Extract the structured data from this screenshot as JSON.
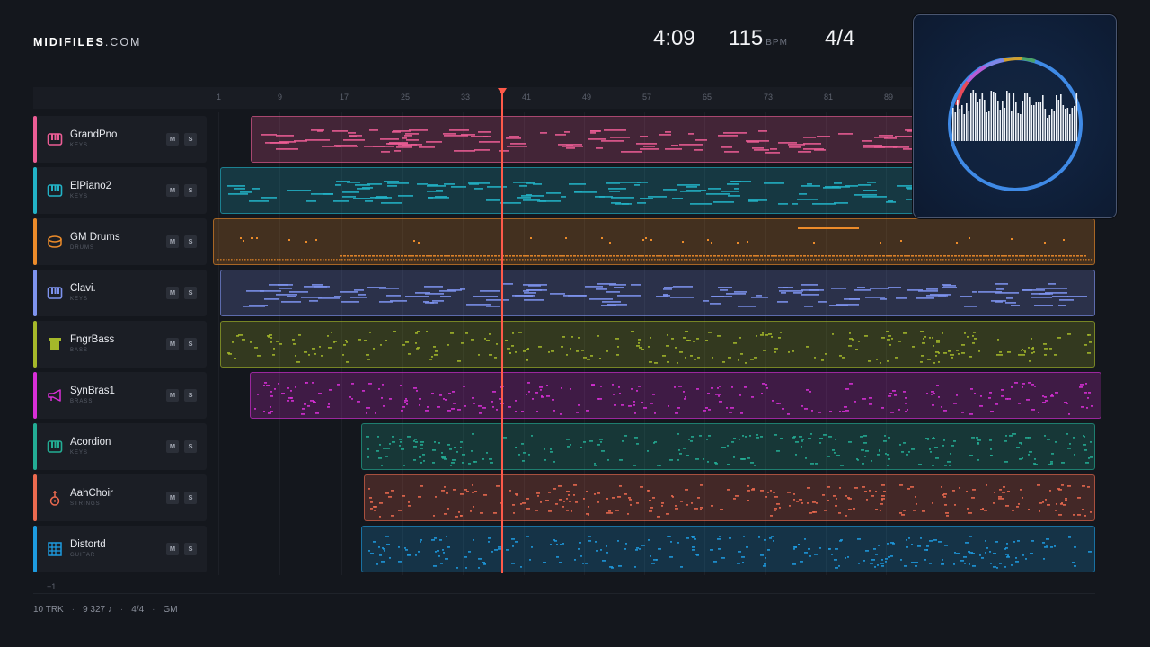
{
  "header": {
    "brand": "MIDIFILES",
    "tld": ".COM",
    "time": "4:09",
    "tempo": "115",
    "tempo_unit": "BPM",
    "time_signature": "4/4"
  },
  "ruler": {
    "bars": [
      "1",
      "9",
      "17",
      "25",
      "33",
      "41",
      "49",
      "57",
      "65",
      "73",
      "81",
      "89"
    ]
  },
  "tracks": [
    {
      "name": "GrandPno",
      "category": "KEYS",
      "color": "#ec5d95",
      "icon": "piano-icon",
      "mute": "M",
      "solo": "S"
    },
    {
      "name": "ElPiano2",
      "category": "KEYS",
      "color": "#22b3c7",
      "icon": "piano-icon",
      "mute": "M",
      "solo": "S"
    },
    {
      "name": "GM Drums",
      "category": "DRUMS",
      "color": "#ec8b2a",
      "icon": "drum-icon",
      "mute": "M",
      "solo": "S"
    },
    {
      "name": "Clavi.",
      "category": "KEYS",
      "color": "#7e93ee",
      "icon": "piano-icon",
      "mute": "M",
      "solo": "S"
    },
    {
      "name": "FngrBass",
      "category": "BASS",
      "color": "#a5b82a",
      "icon": "bass-amp-icon",
      "mute": "M",
      "solo": "S"
    },
    {
      "name": "SynBras1",
      "category": "BRASS",
      "color": "#d92fd8",
      "icon": "trumpet-icon",
      "mute": "M",
      "solo": "S"
    },
    {
      "name": "Acordion",
      "category": "KEYS",
      "color": "#23ad94",
      "icon": "piano-icon",
      "mute": "M",
      "solo": "S"
    },
    {
      "name": "AahChoir",
      "category": "STRINGS",
      "color": "#ec6a4f",
      "icon": "guitar-icon",
      "mute": "M",
      "solo": "S"
    },
    {
      "name": "Distortd",
      "category": "GUITAR",
      "color": "#1d9be0",
      "icon": "fretboard-icon",
      "mute": "M",
      "solo": "S"
    }
  ],
  "more_tracks": "+1",
  "footer": {
    "tracks": "10 TRK",
    "notes": "9 327 ♪",
    "signature": "4/4",
    "standard": "GM"
  },
  "visualizer": {
    "accent": "#3f8ae6"
  }
}
